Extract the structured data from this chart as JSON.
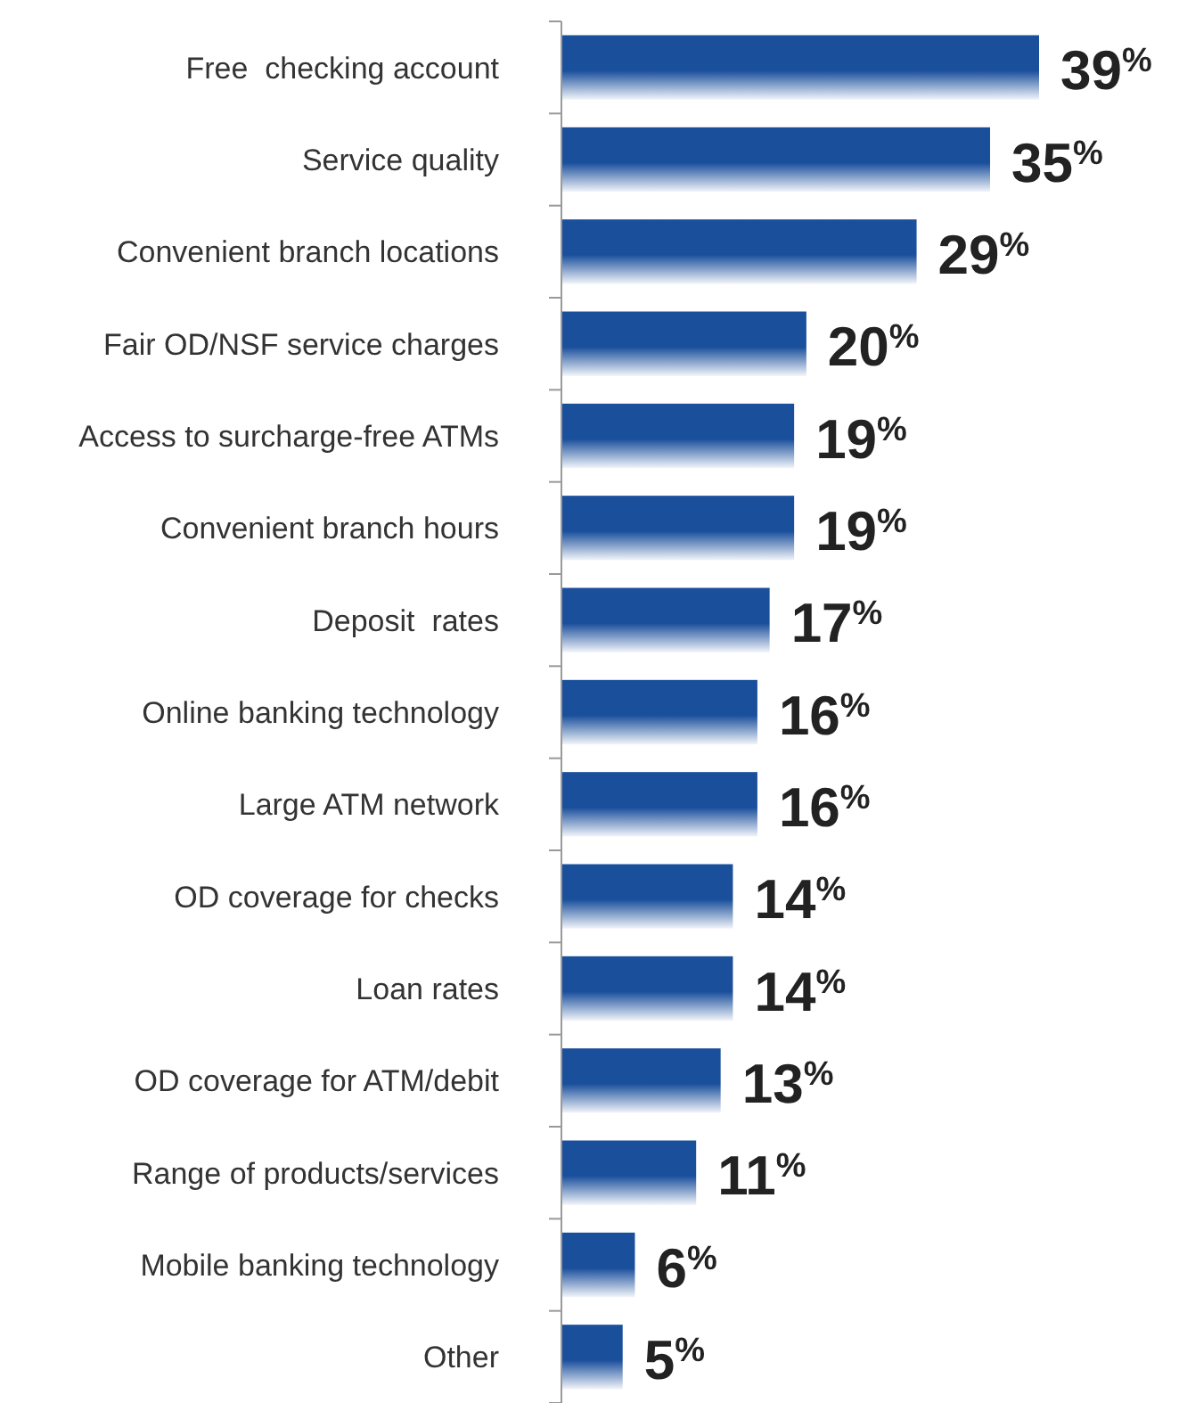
{
  "chart_data": {
    "type": "bar",
    "orientation": "horizontal",
    "categories": [
      "Free  checking account",
      "Service quality",
      "Convenient branch locations",
      "Fair OD/NSF service charges",
      "Access to surcharge-free ATMs",
      "Convenient branch hours",
      "Deposit  rates",
      "Online banking technology",
      "Large ATM network",
      "OD coverage for checks",
      "Loan rates",
      "OD coverage for ATM/debit",
      "Range of products/services",
      "Mobile banking technology",
      "Other"
    ],
    "values": [
      39,
      35,
      29,
      20,
      19,
      19,
      17,
      16,
      16,
      14,
      14,
      13,
      11,
      6,
      5
    ],
    "value_labels": [
      "39$^{%}$",
      "35$^{%}$",
      "29$^{%}$",
      "20$^{%}$",
      "19$^{%}$",
      "19$^{%}$",
      "17$^{%}$",
      "16$^{%}$",
      "16$^{%}$",
      "14$^{%}$",
      "14$^{%}$",
      "13$^{%}$",
      "11$^{%}$",
      "6$^{%}$",
      "5$^{%}$"
    ],
    "color": "#1a4f9c",
    "tick_labels": "y"
  }
}
